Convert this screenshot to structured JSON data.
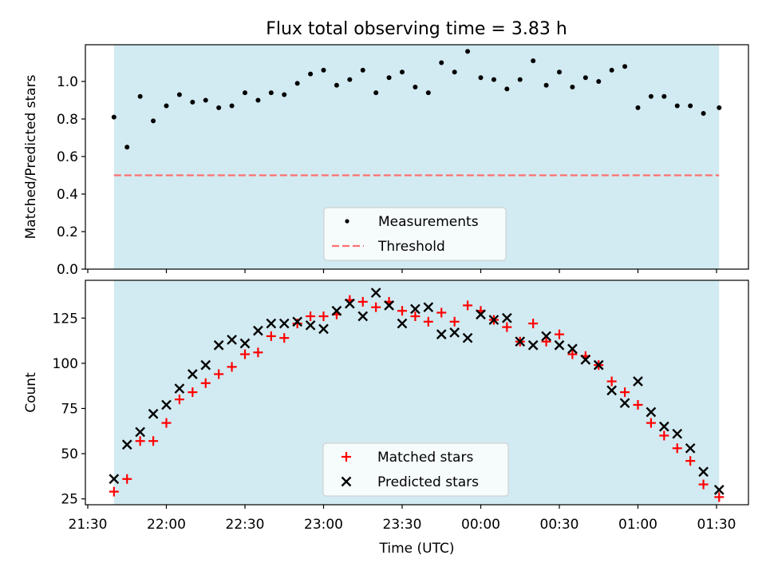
{
  "figure": {
    "title": "Flux total observing time = 3.83 h"
  },
  "colors": {
    "shade": "#add8e6",
    "measurement": "#000000",
    "threshold": "#ff7070",
    "matched": "#ff0000",
    "predicted": "#000000"
  },
  "chart_data": [
    {
      "type": "scatter",
      "ylabel": "Matched/Predicted stars",
      "ylim": [
        0,
        1.2
      ],
      "yticks": [
        "0.0",
        "0.2",
        "0.4",
        "0.6",
        "0.8",
        "1.0"
      ],
      "observing_window": [
        "21:40",
        "01:31"
      ],
      "legend_placement": "lower center",
      "series": [
        {
          "name": "Measurements",
          "marker": "dot",
          "x": [
            "21:40",
            "21:45",
            "21:50",
            "21:55",
            "22:00",
            "22:05",
            "22:10",
            "22:15",
            "22:20",
            "22:25",
            "22:30",
            "22:35",
            "22:40",
            "22:45",
            "22:50",
            "22:55",
            "23:00",
            "23:05",
            "23:10",
            "23:15",
            "23:20",
            "23:25",
            "23:30",
            "23:35",
            "23:40",
            "23:45",
            "23:50",
            "23:55",
            "00:00",
            "00:05",
            "00:10",
            "00:15",
            "00:20",
            "00:25",
            "00:30",
            "00:35",
            "00:40",
            "00:45",
            "00:50",
            "00:55",
            "01:00",
            "01:05",
            "01:10",
            "01:15",
            "01:20",
            "01:25",
            "01:31"
          ],
          "y": [
            0.81,
            0.65,
            0.92,
            0.79,
            0.87,
            0.93,
            0.89,
            0.9,
            0.86,
            0.87,
            0.94,
            0.9,
            0.94,
            0.93,
            0.99,
            1.04,
            1.06,
            0.98,
            1.01,
            1.06,
            0.94,
            1.02,
            1.05,
            0.97,
            0.94,
            1.1,
            1.05,
            1.16,
            1.02,
            1.01,
            0.96,
            1.01,
            1.11,
            0.98,
            1.05,
            0.97,
            1.02,
            1.0,
            1.06,
            1.08,
            0.86,
            0.92,
            0.92,
            0.87,
            0.87,
            0.83,
            0.86
          ]
        },
        {
          "name": "Threshold",
          "marker": "dashed-line",
          "value": 0.5
        }
      ]
    },
    {
      "type": "scatter",
      "xlabel": "Time (UTC)",
      "ylabel": "Count",
      "ylim": [
        20,
        145
      ],
      "yticks": [
        "25",
        "50",
        "75",
        "100",
        "125"
      ],
      "xticks": [
        "21:30",
        "22:00",
        "22:30",
        "23:00",
        "23:30",
        "00:00",
        "00:30",
        "01:00",
        "01:30"
      ],
      "observing_window": [
        "21:40",
        "01:31"
      ],
      "legend_placement": "lower center",
      "series": [
        {
          "name": "Matched stars",
          "marker": "plus",
          "x": [
            "21:40",
            "21:45",
            "21:50",
            "21:55",
            "22:00",
            "22:05",
            "22:10",
            "22:15",
            "22:20",
            "22:25",
            "22:30",
            "22:35",
            "22:40",
            "22:45",
            "22:50",
            "22:55",
            "23:00",
            "23:05",
            "23:10",
            "23:15",
            "23:20",
            "23:25",
            "23:30",
            "23:35",
            "23:40",
            "23:45",
            "23:50",
            "23:55",
            "00:00",
            "00:05",
            "00:10",
            "00:15",
            "00:20",
            "00:25",
            "00:30",
            "00:35",
            "00:40",
            "00:45",
            "00:50",
            "00:55",
            "01:00",
            "01:05",
            "01:10",
            "01:15",
            "01:20",
            "01:25",
            "01:31"
          ],
          "y": [
            29,
            36,
            57,
            57,
            67,
            80,
            84,
            89,
            94,
            98,
            105,
            106,
            115,
            114,
            122,
            126,
            126,
            127,
            135,
            134,
            131,
            134,
            129,
            126,
            123,
            128,
            123,
            132,
            129,
            124,
            120,
            112,
            122,
            112,
            116,
            105,
            104,
            99,
            90,
            84,
            77,
            67,
            60,
            53,
            46,
            33,
            26
          ]
        },
        {
          "name": "Predicted stars",
          "marker": "x",
          "x": [
            "21:40",
            "21:45",
            "21:50",
            "21:55",
            "22:00",
            "22:05",
            "22:10",
            "22:15",
            "22:20",
            "22:25",
            "22:30",
            "22:35",
            "22:40",
            "22:45",
            "22:50",
            "22:55",
            "23:00",
            "23:05",
            "23:10",
            "23:15",
            "23:20",
            "23:25",
            "23:30",
            "23:35",
            "23:40",
            "23:45",
            "23:50",
            "23:55",
            "00:00",
            "00:05",
            "00:10",
            "00:15",
            "00:20",
            "00:25",
            "00:30",
            "00:35",
            "00:40",
            "00:45",
            "00:50",
            "00:55",
            "01:00",
            "01:05",
            "01:10",
            "01:15",
            "01:20",
            "01:25",
            "01:31"
          ],
          "y": [
            36,
            55,
            62,
            72,
            77,
            86,
            94,
            99,
            110,
            113,
            111,
            118,
            122,
            122,
            123,
            121,
            119,
            129,
            133,
            126,
            139,
            132,
            122,
            130,
            131,
            116,
            117,
            114,
            127,
            124,
            125,
            112,
            110,
            115,
            110,
            108,
            102,
            99,
            85,
            78,
            90,
            73,
            65,
            61,
            53,
            40,
            30
          ]
        }
      ]
    }
  ]
}
